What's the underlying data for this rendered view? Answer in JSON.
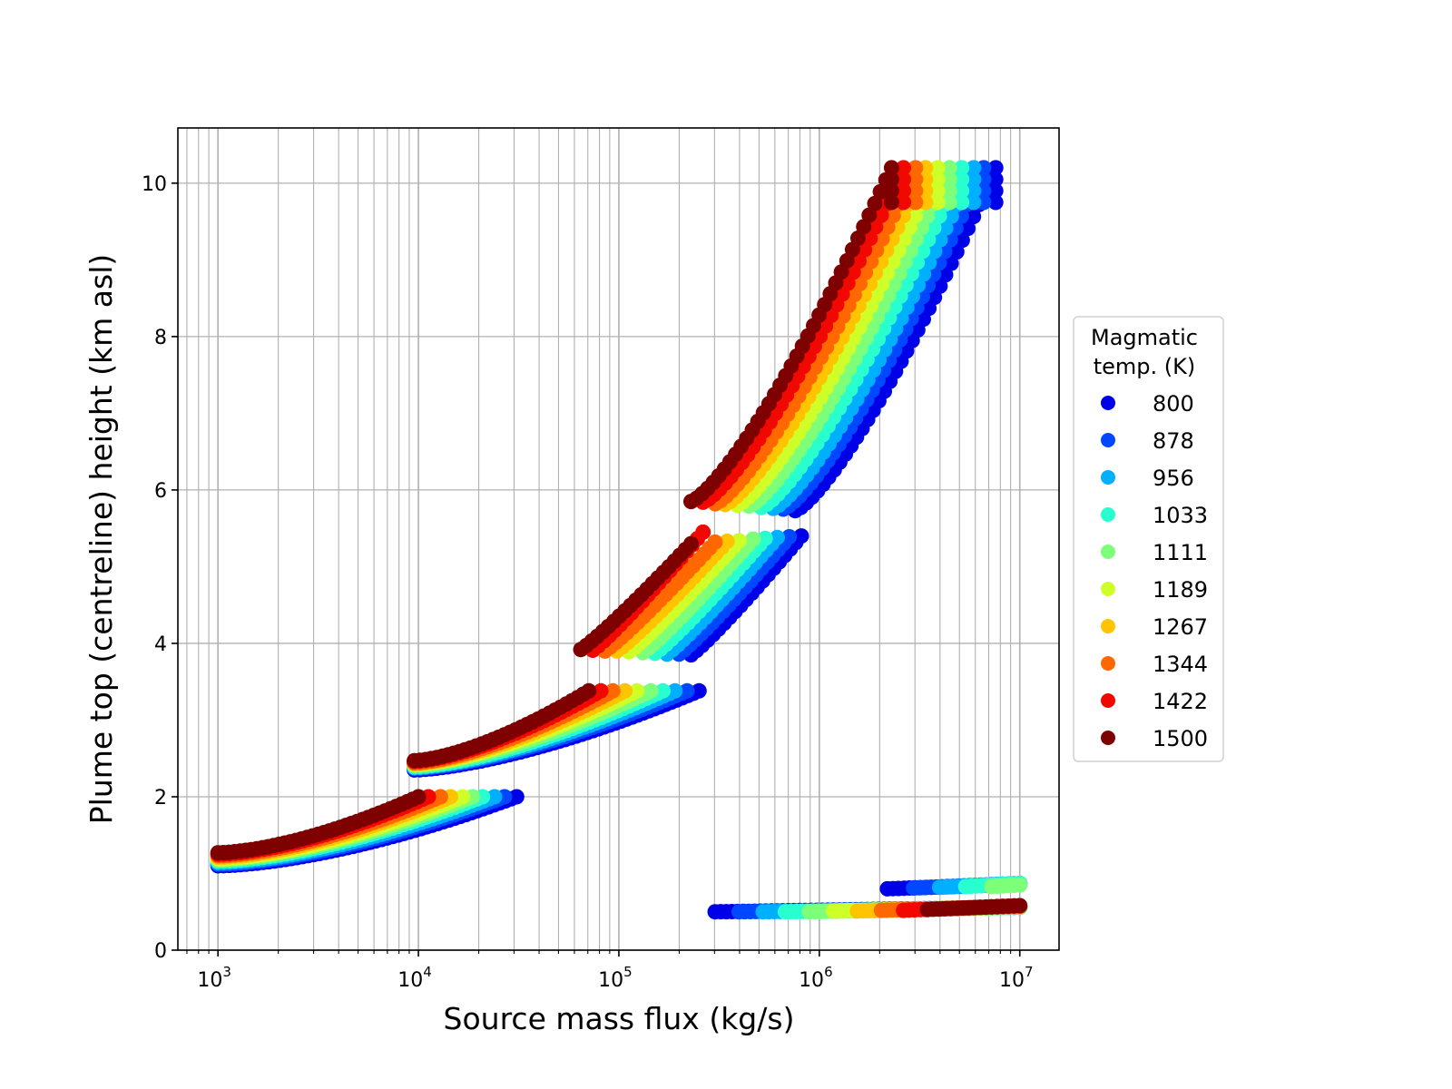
{
  "chart_data": {
    "type": "scatter",
    "title": "",
    "xlabel": "Source mass flux (kg/s)",
    "ylabel": "Plume top (centreline) height (km asl)",
    "xscale": "log",
    "xlim": [
      631,
      15700000
    ],
    "ylim": [
      0,
      10.72
    ],
    "grid": "major and minor",
    "x_ticks": [
      {
        "value": 1000,
        "base": "10",
        "exp": "3"
      },
      {
        "value": 10000,
        "base": "10",
        "exp": "4"
      },
      {
        "value": 100000,
        "base": "10",
        "exp": "5"
      },
      {
        "value": 1000000,
        "base": "10",
        "exp": "6"
      },
      {
        "value": 10000000,
        "base": "10",
        "exp": "7"
      }
    ],
    "y_ticks": [
      "0",
      "2",
      "4",
      "6",
      "8",
      "10"
    ],
    "legend": {
      "title_line1": "Magmatic",
      "title_line2": "temp. (K)",
      "placement": "outside-right"
    },
    "note": "Each series is a dense set of points; segments give log10(mass flux) range, height range (km) and curve exponent",
    "series": [
      {
        "name": "800",
        "color": "#0000e8",
        "segments": [
          {
            "log10_x": [
              3.0,
              4.49
            ],
            "y": [
              1.1,
              2.0
            ],
            "p": 1.6
          },
          {
            "log10_x": [
              3.98,
              5.4
            ],
            "y": [
              2.35,
              3.38
            ],
            "p": 1.5
          },
          {
            "log10_x": [
              5.36,
              5.91
            ],
            "y": [
              3.85,
              5.4
            ],
            "p": 1.1
          },
          {
            "log10_x": [
              5.88,
              6.88
            ],
            "y": [
              5.73,
              10.2
            ],
            "p": 1.3
          },
          {
            "log10_x": [
              5.48,
              7.0
            ],
            "y": [
              0.5,
              0.56
            ],
            "p": 1
          },
          {
            "log10_x": [
              6.34,
              7.0
            ],
            "y": [
              0.8,
              0.86
            ],
            "p": 1
          }
        ]
      },
      {
        "name": "878",
        "color": "#0048ff",
        "segments": [
          {
            "log10_x": [
              3.0,
              4.43
            ],
            "y": [
              1.12,
              2.0
            ],
            "p": 1.6
          },
          {
            "log10_x": [
              3.98,
              5.34
            ],
            "y": [
              2.37,
              3.38
            ],
            "p": 1.5
          },
          {
            "log10_x": [
              5.3,
              5.85
            ],
            "y": [
              3.86,
              5.39
            ],
            "p": 1.1
          },
          {
            "log10_x": [
              5.82,
              6.82
            ],
            "y": [
              5.75,
              10.2
            ],
            "p": 1.3
          },
          {
            "log10_x": [
              5.6,
              7.0
            ],
            "y": [
              0.5,
              0.56
            ],
            "p": 1
          },
          {
            "log10_x": [
              6.47,
              7.0
            ],
            "y": [
              0.81,
              0.87
            ],
            "p": 1
          }
        ]
      },
      {
        "name": "956",
        "color": "#00b0ff",
        "segments": [
          {
            "log10_x": [
              3.0,
              4.38
            ],
            "y": [
              1.14,
              2.0
            ],
            "p": 1.6
          },
          {
            "log10_x": [
              3.98,
              5.28
            ],
            "y": [
              2.38,
              3.38
            ],
            "p": 1.5
          },
          {
            "log10_x": [
              5.24,
              5.79
            ],
            "y": [
              3.86,
              5.38
            ],
            "p": 1.1
          },
          {
            "log10_x": [
              5.77,
              6.77
            ],
            "y": [
              5.76,
              10.2
            ],
            "p": 1.3
          },
          {
            "log10_x": [
              5.72,
              7.0
            ],
            "y": [
              0.5,
              0.56
            ],
            "p": 1
          },
          {
            "log10_x": [
              6.6,
              7.0
            ],
            "y": [
              0.82,
              0.87
            ],
            "p": 1
          }
        ]
      },
      {
        "name": "1033",
        "color": "#29ffce",
        "segments": [
          {
            "log10_x": [
              3.0,
              4.32
            ],
            "y": [
              1.16,
              2.0
            ],
            "p": 1.6
          },
          {
            "log10_x": [
              3.98,
              5.22
            ],
            "y": [
              2.39,
              3.38
            ],
            "p": 1.5
          },
          {
            "log10_x": [
              5.18,
              5.73
            ],
            "y": [
              3.87,
              5.37
            ],
            "p": 1.1
          },
          {
            "log10_x": [
              5.71,
              6.71
            ],
            "y": [
              5.77,
              10.2
            ],
            "p": 1.3
          },
          {
            "log10_x": [
              5.83,
              7.0
            ],
            "y": [
              0.5,
              0.56
            ],
            "p": 1
          },
          {
            "log10_x": [
              6.73,
              7.0
            ],
            "y": [
              0.83,
              0.87
            ],
            "p": 1
          }
        ]
      },
      {
        "name": "1111",
        "color": "#7dff7a",
        "segments": [
          {
            "log10_x": [
              3.0,
              4.27
            ],
            "y": [
              1.18,
              2.0
            ],
            "p": 1.6
          },
          {
            "log10_x": [
              3.98,
              5.16
            ],
            "y": [
              2.41,
              3.38
            ],
            "p": 1.5
          },
          {
            "log10_x": [
              5.12,
              5.67
            ],
            "y": [
              3.88,
              5.36
            ],
            "p": 1.1
          },
          {
            "log10_x": [
              5.65,
              6.65
            ],
            "y": [
              5.79,
              10.2
            ],
            "p": 1.3
          },
          {
            "log10_x": [
              5.95,
              7.0
            ],
            "y": [
              0.5,
              0.56
            ],
            "p": 1
          },
          {
            "log10_x": [
              6.86,
              7.0
            ],
            "y": [
              0.83,
              0.85
            ],
            "p": 1
          }
        ]
      },
      {
        "name": "1189",
        "color": "#ceff29",
        "segments": [
          {
            "log10_x": [
              3.0,
              4.22
            ],
            "y": [
              1.19,
              2.0
            ],
            "p": 1.6
          },
          {
            "log10_x": [
              3.98,
              5.09
            ],
            "y": [
              2.42,
              3.38
            ],
            "p": 1.5
          },
          {
            "log10_x": [
              5.05,
              5.6
            ],
            "y": [
              3.89,
              5.34
            ],
            "p": 1.1
          },
          {
            "log10_x": [
              5.59,
              6.59
            ],
            "y": [
              5.8,
              10.2
            ],
            "p": 1.3
          },
          {
            "log10_x": [
              6.07,
              7.0
            ],
            "y": [
              0.51,
              0.57
            ],
            "p": 1
          }
        ]
      },
      {
        "name": "1267",
        "color": "#ffc400",
        "segments": [
          {
            "log10_x": [
              3.0,
              4.16
            ],
            "y": [
              1.21,
              2.0
            ],
            "p": 1.6
          },
          {
            "log10_x": [
              3.98,
              5.03
            ],
            "y": [
              2.43,
              3.38
            ],
            "p": 1.5
          },
          {
            "log10_x": [
              4.99,
              5.54
            ],
            "y": [
              3.9,
              5.33
            ],
            "p": 1.1
          },
          {
            "log10_x": [
              5.53,
              6.53
            ],
            "y": [
              5.81,
              10.2
            ],
            "p": 1.3
          },
          {
            "log10_x": [
              6.19,
              7.0
            ],
            "y": [
              0.51,
              0.57
            ],
            "p": 1
          }
        ]
      },
      {
        "name": "1344",
        "color": "#ff6800",
        "segments": [
          {
            "log10_x": [
              3.0,
              4.11
            ],
            "y": [
              1.23,
              2.0
            ],
            "p": 1.6
          },
          {
            "log10_x": [
              3.98,
              4.97
            ],
            "y": [
              2.44,
              3.38
            ],
            "p": 1.5
          },
          {
            "log10_x": [
              4.93,
              5.48
            ],
            "y": [
              3.9,
              5.32
            ],
            "p": 1.1
          },
          {
            "log10_x": [
              5.48,
              6.48
            ],
            "y": [
              5.82,
              10.2
            ],
            "p": 1.3
          },
          {
            "log10_x": [
              6.31,
              7.0
            ],
            "y": [
              0.52,
              0.57
            ],
            "p": 1
          }
        ]
      },
      {
        "name": "1422",
        "color": "#f10800",
        "segments": [
          {
            "log10_x": [
              3.0,
              4.05
            ],
            "y": [
              1.25,
              2.0
            ],
            "p": 1.6
          },
          {
            "log10_x": [
              3.98,
              4.91
            ],
            "y": [
              2.46,
              3.38
            ],
            "p": 1.5
          },
          {
            "log10_x": [
              4.87,
              5.42
            ],
            "y": [
              3.91,
              5.45
            ],
            "p": 1.1
          },
          {
            "log10_x": [
              5.42,
              6.42
            ],
            "y": [
              5.84,
              10.2
            ],
            "p": 1.3
          },
          {
            "log10_x": [
              6.42,
              7.0
            ],
            "y": [
              0.52,
              0.58
            ],
            "p": 1
          }
        ]
      },
      {
        "name": "1500",
        "color": "#7f0000",
        "segments": [
          {
            "log10_x": [
              3.0,
              4.0
            ],
            "y": [
              1.27,
              2.0
            ],
            "p": 1.6
          },
          {
            "log10_x": [
              3.98,
              4.85
            ],
            "y": [
              2.47,
              3.38
            ],
            "p": 1.5
          },
          {
            "log10_x": [
              4.81,
              5.36
            ],
            "y": [
              3.92,
              5.3
            ],
            "p": 1.1
          },
          {
            "log10_x": [
              5.36,
              6.36
            ],
            "y": [
              5.85,
              10.2
            ],
            "p": 1.3
          },
          {
            "log10_x": [
              6.54,
              7.0
            ],
            "y": [
              0.53,
              0.58
            ],
            "p": 1
          }
        ]
      }
    ]
  }
}
